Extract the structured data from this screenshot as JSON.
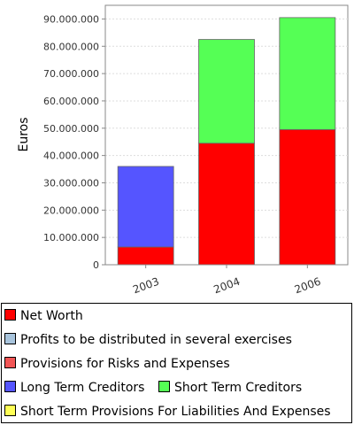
{
  "chart_data": {
    "type": "bar",
    "stacked": true,
    "ylabel": "Euros",
    "ylim": [
      0,
      95000000
    ],
    "yticks": [
      "0",
      "10.000.000",
      "20.000.000",
      "30.000.000",
      "40.000.000",
      "50.000.000",
      "60.000.000",
      "70.000.000",
      "80.000.000",
      "90.000.000"
    ],
    "ytick_values": [
      0,
      10000000,
      20000000,
      30000000,
      40000000,
      50000000,
      60000000,
      70000000,
      80000000,
      90000000
    ],
    "categories": [
      "2003",
      "2004",
      "2006"
    ],
    "grid": "horizontal dashed",
    "legend_position": "bottom",
    "series": [
      {
        "name": "Net Worth",
        "color": "#ff0000",
        "values": [
          6500000,
          44500000,
          49500000
        ]
      },
      {
        "name": "Profits to be distributed in several exercises",
        "color": "#a8c4dc",
        "values": [
          0,
          0,
          0
        ]
      },
      {
        "name": "Provisions for Risks and Expenses",
        "color": "#f15555",
        "values": [
          0,
          0,
          0
        ]
      },
      {
        "name": "Long Term Creditors",
        "color": "#5555ff",
        "values": [
          29500000,
          0,
          0
        ]
      },
      {
        "name": "Short Term Creditors",
        "color": "#55ff55",
        "values": [
          0,
          38000000,
          41000000
        ]
      },
      {
        "name": "Short Term Provisions For Liabilities And Expenses",
        "color": "#ffff55",
        "values": [
          0,
          0,
          0
        ]
      }
    ]
  }
}
